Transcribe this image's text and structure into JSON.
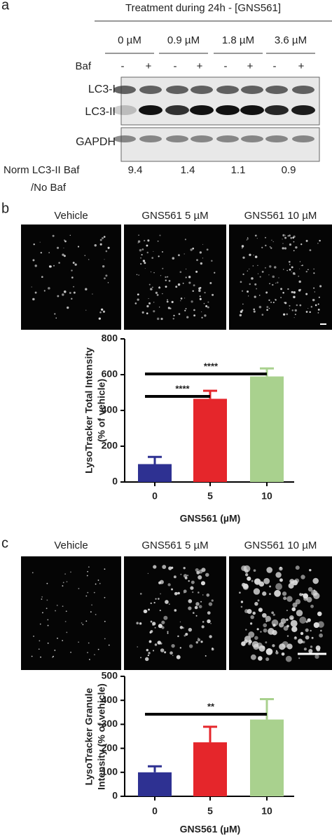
{
  "panel_labels": [
    "a",
    "b",
    "c"
  ],
  "blot": {
    "title": "Treatment during 24h - [GNS561]",
    "concentrations": [
      "0 µM",
      "0.9 µM",
      "1.8 µM",
      "3.6 µM"
    ],
    "baf_label": "Baf",
    "baf": [
      "-",
      "+",
      "-",
      "+",
      "-",
      "+",
      "-",
      "+"
    ],
    "bands": [
      "LC3-I",
      "LC3-II",
      "GAPDH"
    ],
    "norm_label": [
      "Norm LC3-II Baf",
      "/No Baf"
    ],
    "norm_values": [
      9.4,
      1.4,
      1.1,
      0.9
    ]
  },
  "images_b": [
    "Vehicle",
    "GNS561 5 µM",
    "GNS561 10 µM"
  ],
  "images_c": [
    "Vehicle",
    "GNS561 5 µM",
    "GNS561 10 µM"
  ],
  "chart_data": [
    {
      "type": "bar",
      "ylabel": [
        "LysoTracker Total Intensity",
        "(% of vehicle)"
      ],
      "xlabel": "GNS561 (µM)",
      "categories": [
        "0",
        "5",
        "10"
      ],
      "values": [
        100,
        465,
        590
      ],
      "errors": [
        40,
        45,
        45
      ],
      "colors": [
        "#2e3192",
        "#e5262b",
        "#a9d18e"
      ],
      "ylim": [
        0,
        800
      ],
      "yticks": [
        0,
        200,
        400,
        600,
        800
      ],
      "annotations": [
        "****",
        "****"
      ]
    },
    {
      "type": "bar",
      "ylabel": [
        "LysoTracker Granule",
        "Intensity (% of vehicle)"
      ],
      "xlabel": "GNS561 (µM)",
      "categories": [
        "0",
        "5",
        "10"
      ],
      "values": [
        100,
        225,
        320
      ],
      "errors": [
        25,
        65,
        85
      ],
      "colors": [
        "#2e3192",
        "#e5262b",
        "#a9d18e"
      ],
      "ylim": [
        0,
        500
      ],
      "yticks": [
        0,
        100,
        200,
        300,
        400,
        500
      ],
      "annotations": [
        "**"
      ]
    }
  ]
}
